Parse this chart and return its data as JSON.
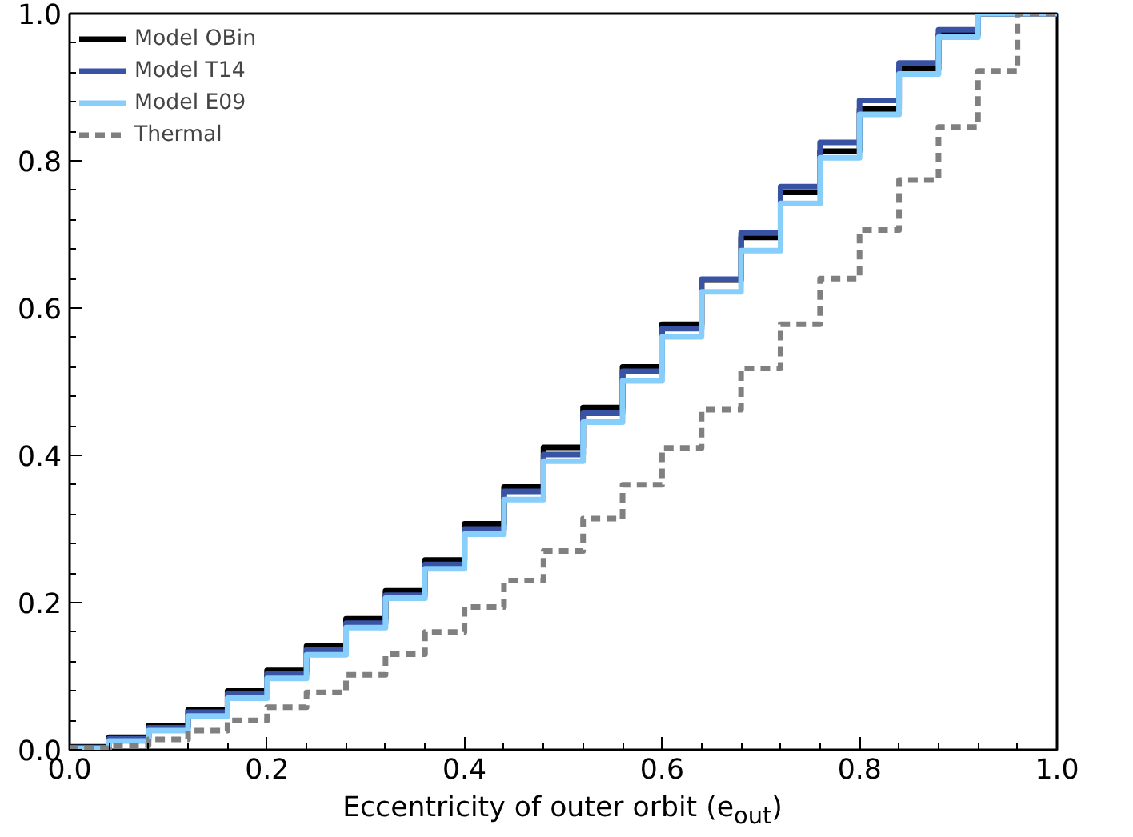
{
  "chart_data": {
    "type": "step",
    "xlabel": "Eccentricity of outer orbit (e$_{out}$)",
    "x": [
      0.0,
      0.04,
      0.08,
      0.12,
      0.16,
      0.2,
      0.24,
      0.28,
      0.32,
      0.36,
      0.4,
      0.44,
      0.48,
      0.52,
      0.56,
      0.6,
      0.64,
      0.68,
      0.72,
      0.76,
      0.8,
      0.84,
      0.88,
      0.92,
      0.96,
      1.0
    ],
    "series": [
      {
        "name": "Model OBin",
        "color": "#000000",
        "values": [
          0,
          0.004,
          0.017,
          0.033,
          0.054,
          0.08,
          0.108,
          0.141,
          0.178,
          0.216,
          0.258,
          0.307,
          0.357,
          0.411,
          0.465,
          0.52,
          0.578,
          0.638,
          0.696,
          0.757,
          0.813,
          0.87,
          0.925,
          0.972,
          1.0,
          1.0
        ]
      },
      {
        "name": "Model T14",
        "color": "#3953a4",
        "values": [
          0,
          0.003,
          0.015,
          0.03,
          0.051,
          0.076,
          0.103,
          0.136,
          0.172,
          0.21,
          0.252,
          0.3,
          0.351,
          0.401,
          0.457,
          0.514,
          0.572,
          0.639,
          0.702,
          0.765,
          0.825,
          0.882,
          0.933,
          0.978,
          1.0,
          1.0
        ]
      },
      {
        "name": "Model E09",
        "color": "#87cefa",
        "values": [
          0,
          0.002,
          0.012,
          0.026,
          0.046,
          0.07,
          0.097,
          0.129,
          0.166,
          0.206,
          0.246,
          0.293,
          0.34,
          0.392,
          0.445,
          0.501,
          0.561,
          0.622,
          0.678,
          0.742,
          0.804,
          0.863,
          0.918,
          0.968,
          1.0,
          1.0
        ]
      },
      {
        "name": "Thermal",
        "color": "#808080",
        "line_style": "dashed",
        "values": [
          0,
          0.002,
          0.006,
          0.014,
          0.026,
          0.04,
          0.058,
          0.078,
          0.102,
          0.13,
          0.16,
          0.194,
          0.23,
          0.27,
          0.314,
          0.36,
          0.41,
          0.462,
          0.518,
          0.578,
          0.64,
          0.706,
          0.774,
          0.846,
          0.922,
          1.0
        ]
      }
    ],
    "xlim": [
      0.0,
      1.0
    ],
    "ylim": [
      0.0,
      1.0
    ],
    "xticks": [
      {
        "value": 0.0,
        "label": "0.0"
      },
      {
        "value": 0.04,
        "label": null
      },
      {
        "value": 0.08,
        "label": null
      },
      {
        "value": 0.12,
        "label": null
      },
      {
        "value": 0.16,
        "label": null
      },
      {
        "value": 0.2,
        "label": "0.2"
      },
      {
        "value": 0.24,
        "label": null
      },
      {
        "value": 0.28,
        "label": null
      },
      {
        "value": 0.32,
        "label": null
      },
      {
        "value": 0.36,
        "label": null
      },
      {
        "value": 0.4,
        "label": "0.4"
      },
      {
        "value": 0.44,
        "label": null
      },
      {
        "value": 0.48,
        "label": null
      },
      {
        "value": 0.52,
        "label": null
      },
      {
        "value": 0.56,
        "label": null
      },
      {
        "value": 0.6,
        "label": "0.6"
      },
      {
        "value": 0.64,
        "label": null
      },
      {
        "value": 0.68,
        "label": null
      },
      {
        "value": 0.72,
        "label": null
      },
      {
        "value": 0.76,
        "label": null
      },
      {
        "value": 0.8,
        "label": "0.8"
      },
      {
        "value": 0.84,
        "label": null
      },
      {
        "value": 0.88,
        "label": null
      },
      {
        "value": 0.92,
        "label": null
      },
      {
        "value": 0.96,
        "label": null
      },
      {
        "value": 1.0,
        "label": "1.0"
      }
    ],
    "yticks": [
      {
        "value": 0.0,
        "label": "0.0"
      },
      {
        "value": 0.04,
        "label": null
      },
      {
        "value": 0.08,
        "label": null
      },
      {
        "value": 0.12,
        "label": null
      },
      {
        "value": 0.16,
        "label": null
      },
      {
        "value": 0.2,
        "label": "0.2"
      },
      {
        "value": 0.24,
        "label": null
      },
      {
        "value": 0.28,
        "label": null
      },
      {
        "value": 0.32,
        "label": null
      },
      {
        "value": 0.36,
        "label": null
      },
      {
        "value": 0.4,
        "label": "0.4"
      },
      {
        "value": 0.44,
        "label": null
      },
      {
        "value": 0.48,
        "label": null
      },
      {
        "value": 0.52,
        "label": null
      },
      {
        "value": 0.56,
        "label": null
      },
      {
        "value": 0.6,
        "label": "0.6"
      },
      {
        "value": 0.64,
        "label": null
      },
      {
        "value": 0.68,
        "label": null
      },
      {
        "value": 0.72,
        "label": null
      },
      {
        "value": 0.76,
        "label": null
      },
      {
        "value": 0.8,
        "label": "0.8"
      },
      {
        "value": 0.84,
        "label": null
      },
      {
        "value": 0.88,
        "label": null
      },
      {
        "value": 0.92,
        "label": null
      },
      {
        "value": 0.96,
        "label": null
      },
      {
        "value": 1.0,
        "label": "1.0"
      }
    ],
    "legend": "top left",
    "grid": false,
    "line_style": "solid"
  }
}
